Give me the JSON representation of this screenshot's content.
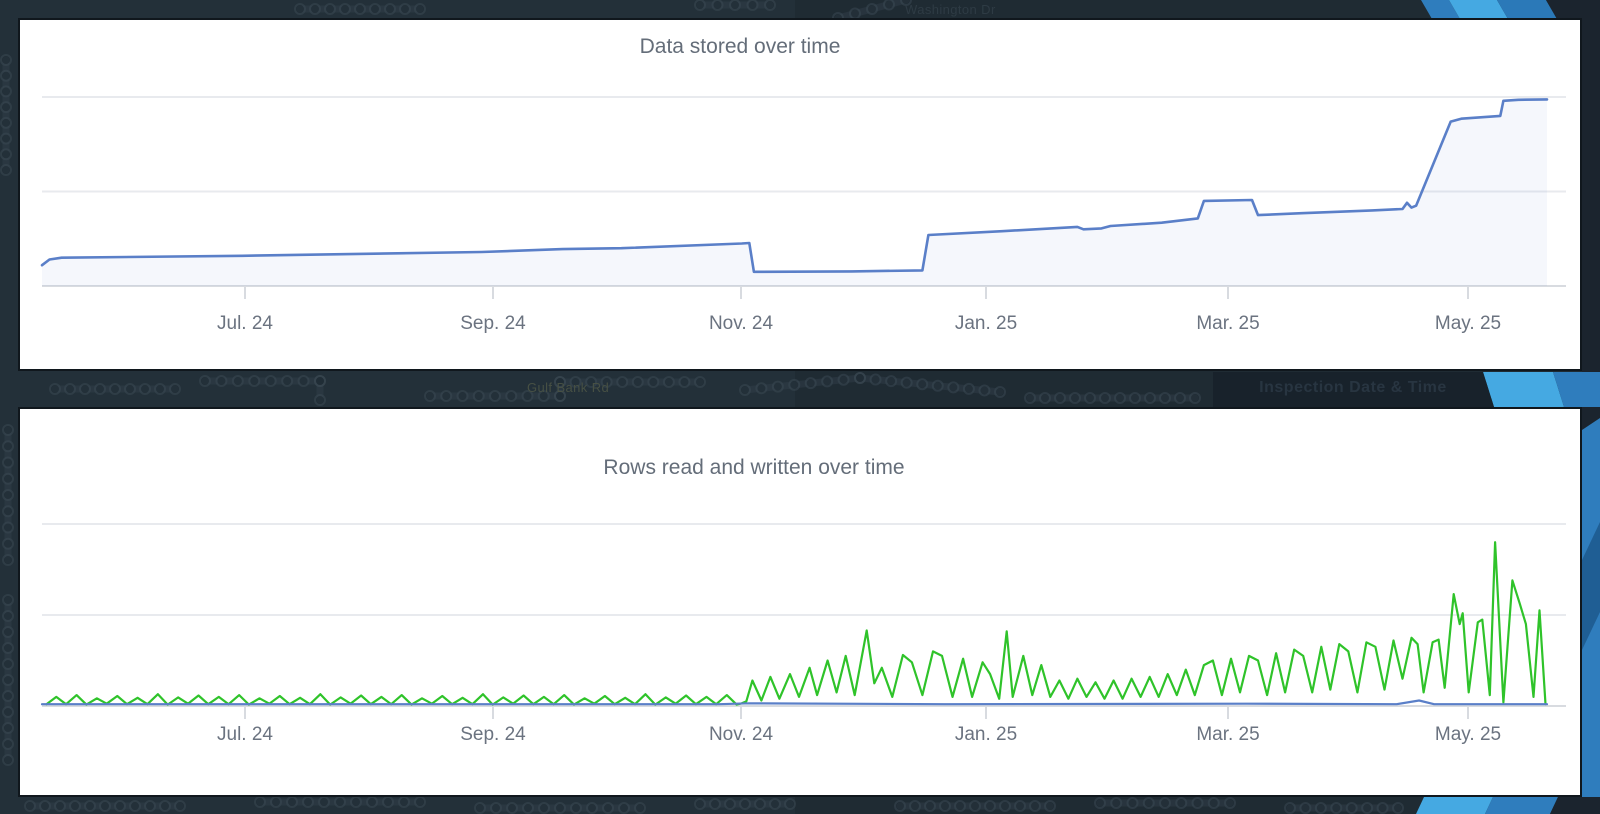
{
  "background": {
    "base_color": "#233039",
    "right_shade_alpha": 0.1,
    "panel_background": "#ffffff",
    "panel_border_color": "#10171d",
    "map_doodle_line_color": "#33414b",
    "map_doodle_node_fill": "#1f2b34",
    "map_doodle_node_stroke": "#3a4852",
    "map_labels": [
      {
        "text": "Washington Dr",
        "color": "#2e3b44"
      },
      {
        "text": "Gulf Bank Rd",
        "color": "#475044"
      }
    ],
    "info_card": {
      "title": "Inspection Date & Time",
      "card_color": "#18222b",
      "text_color": "#283541"
    },
    "ribbon_colors": {
      "light_blue": "#45a9e2",
      "medium_blue": "#2f7dbd",
      "medium_blue_dark": "#2b79b8",
      "stripe_shadow": "#1f5e94",
      "dark_navy": "#1b242e"
    }
  },
  "chart_data": [
    {
      "type": "line",
      "title": "Data stored over time",
      "x_tick_labels": [
        "Jul. 24",
        "Sep. 24",
        "Nov. 24",
        "Jan. 25",
        "Mar. 25",
        "May. 25"
      ],
      "x_range_note": "approx. mid-May 2024 through late May 2025, daily resolution",
      "y_axis": {
        "tick_labels_visible": false,
        "unit": "unlabeled; values expressed in gridline units (horizontal gridlines at 1.0 and 2.0, baseline at 0)"
      },
      "grid": {
        "horizontal_lines": 2,
        "vertical_lines": 0
      },
      "legend": "none",
      "styles": {
        "title_color": "#646d79",
        "tick_label_color": "#6b7380",
        "gridline_color": "#e8eaee",
        "axis_color": "#d8dbe0"
      },
      "series": [
        {
          "name": "data-stored (blue line)",
          "color": "#5a7fc8",
          "fill": true,
          "fill_color": "rgba(90,127,200,0.06)",
          "points": [
            [
              0,
              0.22
            ],
            [
              0.005,
              0.28
            ],
            [
              0.013,
              0.3
            ],
            [
              0.133,
              0.32
            ],
            [
              0.292,
              0.36
            ],
            [
              0.346,
              0.39
            ],
            [
              0.385,
              0.4
            ],
            [
              0.465,
              0.45
            ],
            [
              0.47,
              0.455
            ],
            [
              0.473,
              0.15
            ],
            [
              0.538,
              0.155
            ],
            [
              0.585,
              0.165
            ],
            [
              0.589,
              0.54
            ],
            [
              0.638,
              0.58
            ],
            [
              0.688,
              0.625
            ],
            [
              0.692,
              0.6
            ],
            [
              0.704,
              0.61
            ],
            [
              0.71,
              0.635
            ],
            [
              0.744,
              0.67
            ],
            [
              0.768,
              0.715
            ],
            [
              0.772,
              0.9
            ],
            [
              0.804,
              0.91
            ],
            [
              0.808,
              0.75
            ],
            [
              0.837,
              0.77
            ],
            [
              0.884,
              0.8
            ],
            [
              0.904,
              0.815
            ],
            [
              0.907,
              0.88
            ],
            [
              0.91,
              0.83
            ],
            [
              0.913,
              0.85
            ],
            [
              0.936,
              1.74
            ],
            [
              0.943,
              1.77
            ],
            [
              0.969,
              1.8
            ],
            [
              0.971,
              1.96
            ],
            [
              0.981,
              1.97
            ],
            [
              1,
              1.975
            ]
          ]
        }
      ]
    },
    {
      "type": "line",
      "title": "Rows read and written over time",
      "x_tick_labels": [
        "Jul. 24",
        "Sep. 24",
        "Nov. 24",
        "Jan. 25",
        "Mar. 25",
        "May. 25"
      ],
      "x_range_note": "approx. mid-May 2024 through late May 2025, daily resolution",
      "y_axis": {
        "tick_labels_visible": false,
        "unit": "unlabeled; values expressed in gridline units (horizontal gridlines at 1.0 and 2.0, baseline at 0)"
      },
      "grid": {
        "horizontal_lines": 2,
        "vertical_lines": 0
      },
      "legend": "none",
      "styles": {
        "title_color": "#646d79",
        "tick_label_color": "#6b7380",
        "gridline_color": "#e8eaee",
        "axis_color": "#d8dbe0"
      },
      "series": [
        {
          "name": "green-series (spiky, dominant)",
          "color": "#2fc32a",
          "fill": false,
          "points": [
            [
              0.003,
              0.02
            ],
            [
              0.0095,
              0.1
            ],
            [
              0.016,
              0.02
            ],
            [
              0.023,
              0.12
            ],
            [
              0.0295,
              0.015
            ],
            [
              0.0365,
              0.085
            ],
            [
              0.043,
              0.025
            ],
            [
              0.05,
              0.11
            ],
            [
              0.0565,
              0.02
            ],
            [
              0.0635,
              0.09
            ],
            [
              0.07,
              0.02
            ],
            [
              0.077,
              0.13
            ],
            [
              0.0835,
              0.015
            ],
            [
              0.0905,
              0.095
            ],
            [
              0.097,
              0.025
            ],
            [
              0.104,
              0.115
            ],
            [
              0.1105,
              0.02
            ],
            [
              0.1175,
              0.1
            ],
            [
              0.124,
              0.02
            ],
            [
              0.131,
              0.12
            ],
            [
              0.1375,
              0.015
            ],
            [
              0.1445,
              0.085
            ],
            [
              0.151,
              0.025
            ],
            [
              0.158,
              0.11
            ],
            [
              0.1645,
              0.02
            ],
            [
              0.1715,
              0.09
            ],
            [
              0.178,
              0.02
            ],
            [
              0.185,
              0.13
            ],
            [
              0.1915,
              0.015
            ],
            [
              0.1985,
              0.095
            ],
            [
              0.205,
              0.025
            ],
            [
              0.212,
              0.115
            ],
            [
              0.2185,
              0.02
            ],
            [
              0.2255,
              0.1
            ],
            [
              0.232,
              0.02
            ],
            [
              0.239,
              0.12
            ],
            [
              0.2455,
              0.015
            ],
            [
              0.2525,
              0.085
            ],
            [
              0.259,
              0.025
            ],
            [
              0.266,
              0.11
            ],
            [
              0.2725,
              0.02
            ],
            [
              0.2795,
              0.09
            ],
            [
              0.286,
              0.02
            ],
            [
              0.293,
              0.13
            ],
            [
              0.2995,
              0.015
            ],
            [
              0.3065,
              0.095
            ],
            [
              0.313,
              0.025
            ],
            [
              0.32,
              0.115
            ],
            [
              0.3265,
              0.02
            ],
            [
              0.3335,
              0.1
            ],
            [
              0.34,
              0.02
            ],
            [
              0.347,
              0.12
            ],
            [
              0.3535,
              0.015
            ],
            [
              0.3605,
              0.085
            ],
            [
              0.367,
              0.025
            ],
            [
              0.374,
              0.11
            ],
            [
              0.3805,
              0.02
            ],
            [
              0.3875,
              0.09
            ],
            [
              0.394,
              0.02
            ],
            [
              0.401,
              0.13
            ],
            [
              0.4075,
              0.015
            ],
            [
              0.4145,
              0.095
            ],
            [
              0.421,
              0.025
            ],
            [
              0.428,
              0.115
            ],
            [
              0.4345,
              0.02
            ],
            [
              0.4415,
              0.1
            ],
            [
              0.448,
              0.02
            ],
            [
              0.455,
              0.12
            ],
            [
              0.4615,
              0.015
            ],
            [
              0.465,
              0.03
            ],
            [
              0.468,
              0.05
            ],
            [
              0.472,
              0.28
            ],
            [
              0.478,
              0.06
            ],
            [
              0.484,
              0.32
            ],
            [
              0.49,
              0.08
            ],
            [
              0.497,
              0.35
            ],
            [
              0.503,
              0.1
            ],
            [
              0.51,
              0.42
            ],
            [
              0.515,
              0.12
            ],
            [
              0.522,
              0.5
            ],
            [
              0.528,
              0.15
            ],
            [
              0.534,
              0.55
            ],
            [
              0.54,
              0.12
            ],
            [
              0.548,
              0.83
            ],
            [
              0.553,
              0.25
            ],
            [
              0.558,
              0.42
            ],
            [
              0.565,
              0.1
            ],
            [
              0.572,
              0.56
            ],
            [
              0.578,
              0.48
            ],
            [
              0.585,
              0.12
            ],
            [
              0.592,
              0.6
            ],
            [
              0.598,
              0.55
            ],
            [
              0.605,
              0.1
            ],
            [
              0.612,
              0.52
            ],
            [
              0.618,
              0.1
            ],
            [
              0.625,
              0.48
            ],
            [
              0.63,
              0.35
            ],
            [
              0.636,
              0.08
            ],
            [
              0.641,
              0.82
            ],
            [
              0.645,
              0.1
            ],
            [
              0.652,
              0.55
            ],
            [
              0.658,
              0.12
            ],
            [
              0.664,
              0.45
            ],
            [
              0.67,
              0.1
            ],
            [
              0.676,
              0.28
            ],
            [
              0.682,
              0.08
            ],
            [
              0.688,
              0.3
            ],
            [
              0.694,
              0.1
            ],
            [
              0.7,
              0.26
            ],
            [
              0.706,
              0.08
            ],
            [
              0.712,
              0.28
            ],
            [
              0.718,
              0.08
            ],
            [
              0.724,
              0.3
            ],
            [
              0.73,
              0.1
            ],
            [
              0.736,
              0.32
            ],
            [
              0.742,
              0.1
            ],
            [
              0.748,
              0.35
            ],
            [
              0.754,
              0.12
            ],
            [
              0.76,
              0.4
            ],
            [
              0.766,
              0.12
            ],
            [
              0.772,
              0.45
            ],
            [
              0.778,
              0.5
            ],
            [
              0.784,
              0.12
            ],
            [
              0.79,
              0.52
            ],
            [
              0.796,
              0.15
            ],
            [
              0.802,
              0.55
            ],
            [
              0.808,
              0.5
            ],
            [
              0.814,
              0.12
            ],
            [
              0.82,
              0.58
            ],
            [
              0.826,
              0.15
            ],
            [
              0.832,
              0.62
            ],
            [
              0.838,
              0.55
            ],
            [
              0.844,
              0.15
            ],
            [
              0.85,
              0.65
            ],
            [
              0.856,
              0.18
            ],
            [
              0.862,
              0.68
            ],
            [
              0.868,
              0.6
            ],
            [
              0.874,
              0.15
            ],
            [
              0.88,
              0.7
            ],
            [
              0.886,
              0.65
            ],
            [
              0.892,
              0.18
            ],
            [
              0.898,
              0.72
            ],
            [
              0.904,
              0.3
            ],
            [
              0.91,
              0.75
            ],
            [
              0.914,
              0.68
            ],
            [
              0.918,
              0.15
            ],
            [
              0.924,
              0.7
            ],
            [
              0.928,
              0.73
            ],
            [
              0.932,
              0.2
            ],
            [
              0.938,
              1.23
            ],
            [
              0.942,
              0.9
            ],
            [
              0.944,
              1.02
            ],
            [
              0.948,
              0.15
            ],
            [
              0.954,
              0.92
            ],
            [
              0.957,
              0.95
            ],
            [
              0.962,
              0.12
            ],
            [
              0.9655,
              1.8
            ],
            [
              0.971,
              0.04
            ],
            [
              0.977,
              1.38
            ],
            [
              0.982,
              1.12
            ],
            [
              0.986,
              0.9
            ],
            [
              0.991,
              0.1
            ],
            [
              0.995,
              1.05
            ],
            [
              0.999,
              0.02
            ]
          ]
        },
        {
          "name": "blue-series (flat near baseline)",
          "color": "#5a7fc8",
          "fill": false,
          "points": [
            [
              0,
              0.02
            ],
            [
              0.45,
              0.02
            ],
            [
              0.47,
              0.03
            ],
            [
              0.6,
              0.02
            ],
            [
              0.8,
              0.025
            ],
            [
              0.9,
              0.02
            ],
            [
              0.915,
              0.06
            ],
            [
              0.925,
              0.02
            ],
            [
              1,
              0.02
            ]
          ]
        }
      ]
    }
  ]
}
